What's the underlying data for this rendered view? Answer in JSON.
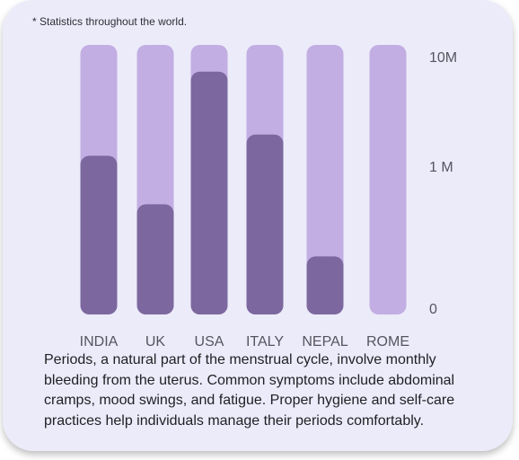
{
  "note": "* Statistics throughout the world.",
  "chart_data": {
    "type": "bar",
    "categories": [
      "INDIA",
      "UK",
      "USA",
      "ITALY",
      "NEPAL",
      "ROME"
    ],
    "values": [
      1200000,
      300000,
      6000000,
      1800000,
      60000,
      0
    ],
    "yscale": "log",
    "yticks": [
      {
        "label": "10M",
        "value": 10000000
      },
      {
        "label": "1 M",
        "value": 1000000
      },
      {
        "label": "0",
        "value": 0
      }
    ],
    "ylim": [
      0,
      10000000
    ],
    "colors": {
      "track": "#c2aee2",
      "fill": "#7c689e"
    }
  },
  "description": "Periods, a natural part of the menstrual cycle, involve monthly bleeding from the uterus. Common symptoms include abdominal cramps, mood swings, and fatigue. Proper hygiene and self-care practices help individuals manage their periods comfortably."
}
